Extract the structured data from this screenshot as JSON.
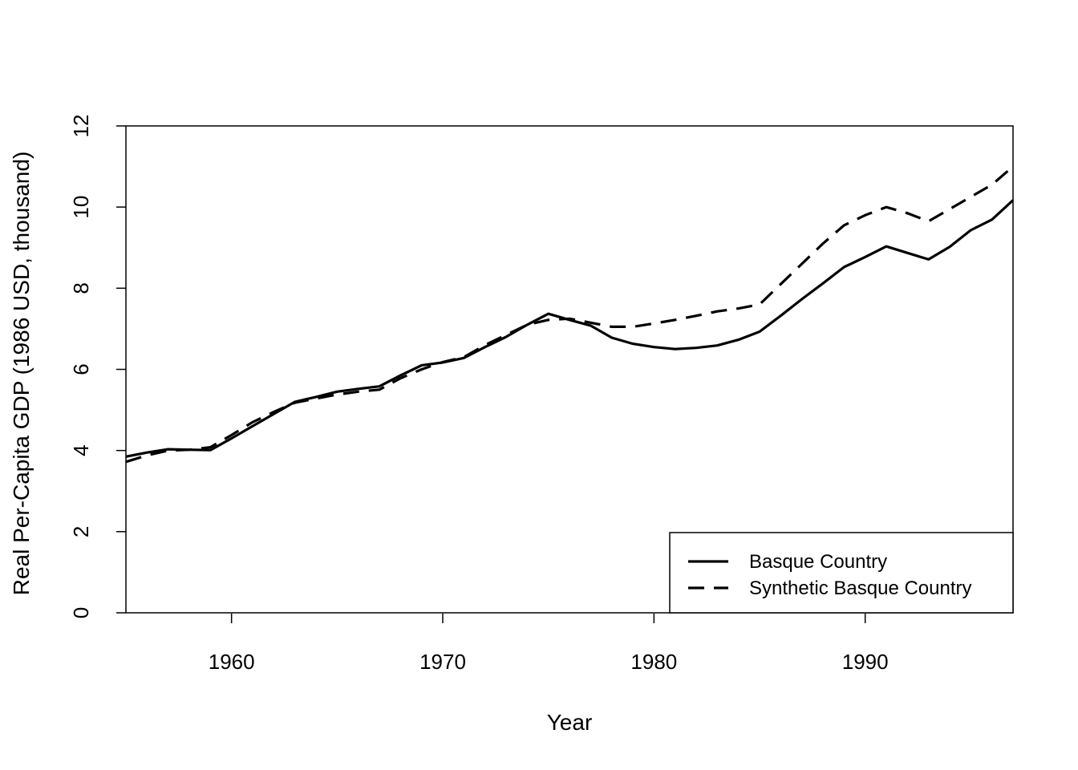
{
  "chart_data": {
    "type": "line",
    "title": "",
    "xlabel": "Year",
    "ylabel": "Real Per-Capita GDP (1986 USD, thousand)",
    "xlim": [
      1955,
      1997
    ],
    "ylim": [
      0,
      12
    ],
    "x_ticks": [
      1960,
      1970,
      1980,
      1990
    ],
    "y_ticks": [
      0,
      2,
      4,
      6,
      8,
      10,
      12
    ],
    "grid": false,
    "legend_position": "bottom-right",
    "x": [
      1955,
      1956,
      1957,
      1958,
      1959,
      1960,
      1961,
      1962,
      1963,
      1964,
      1965,
      1966,
      1967,
      1968,
      1969,
      1970,
      1971,
      1972,
      1973,
      1974,
      1975,
      1976,
      1977,
      1978,
      1979,
      1980,
      1981,
      1982,
      1983,
      1984,
      1985,
      1986,
      1987,
      1988,
      1989,
      1990,
      1991,
      1992,
      1993,
      1994,
      1995,
      1996,
      1997
    ],
    "series": [
      {
        "name": "Basque Country",
        "line_style": "solid",
        "color": "#000000",
        "values": [
          3.85,
          3.95,
          4.03,
          4.02,
          4.01,
          4.3,
          4.6,
          4.9,
          5.2,
          5.32,
          5.45,
          5.52,
          5.58,
          5.85,
          6.1,
          6.17,
          6.28,
          6.55,
          6.8,
          7.1,
          7.37,
          7.22,
          7.08,
          6.78,
          6.63,
          6.55,
          6.5,
          6.53,
          6.59,
          6.73,
          6.93,
          7.32,
          7.73,
          8.12,
          8.52,
          8.77,
          9.03,
          8.87,
          8.71,
          9.02,
          9.43,
          9.69,
          10.17
        ]
      },
      {
        "name": "Synthetic Basque Country",
        "line_style": "dashed",
        "color": "#000000",
        "values": [
          3.72,
          3.88,
          4.0,
          4.02,
          4.08,
          4.38,
          4.7,
          4.95,
          5.18,
          5.28,
          5.38,
          5.45,
          5.5,
          5.78,
          6.0,
          6.18,
          6.3,
          6.6,
          6.85,
          7.1,
          7.22,
          7.25,
          7.15,
          7.05,
          7.05,
          7.13,
          7.22,
          7.32,
          7.43,
          7.5,
          7.6,
          8.1,
          8.6,
          9.1,
          9.55,
          9.8,
          10.0,
          9.85,
          9.65,
          9.95,
          10.25,
          10.55,
          11.0
        ]
      }
    ]
  }
}
